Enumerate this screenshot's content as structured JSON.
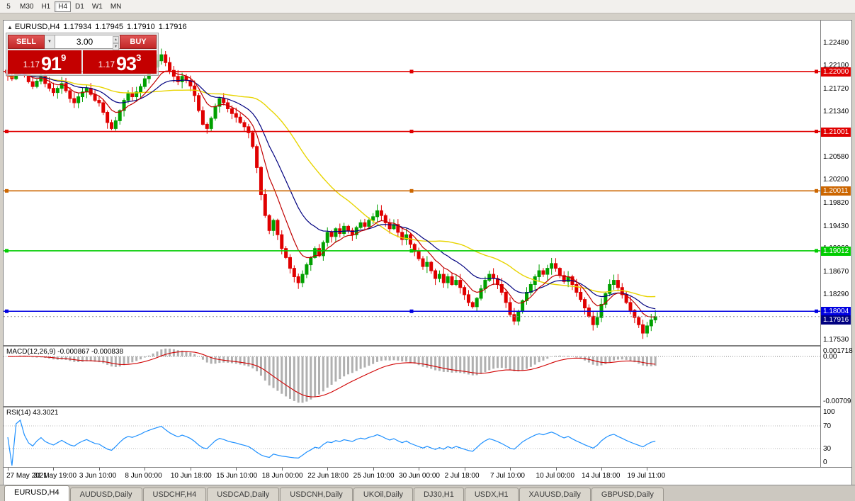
{
  "icons": {
    "collapse": "▲",
    "dropdown": "▼",
    "spin_up": "▲",
    "spin_down": "▼"
  },
  "toolbar": {
    "timeframes": [
      "5",
      "M30",
      "H1",
      "H4",
      "D1",
      "W1",
      "MN"
    ],
    "active": "H4"
  },
  "chart": {
    "header": {
      "collapse_icon": "▲",
      "symbol": "EURUSD,H4",
      "open": "1.17934",
      "high": "1.17945",
      "low": "1.17910",
      "close": "1.17916"
    },
    "trade_panel": {
      "sell_label": "SELL",
      "buy_label": "BUY",
      "lot_size": "3.00",
      "sell_price": {
        "prefix": "1.17",
        "big": "91",
        "sup": "9"
      },
      "buy_price": {
        "prefix": "1.17",
        "big": "93",
        "sup": "3"
      }
    },
    "levels": [
      {
        "price": 1.22,
        "label": "1.22000",
        "color": "#e00000"
      },
      {
        "price": 1.21001,
        "label": "1.21001",
        "color": "#e00000"
      },
      {
        "price": 1.20011,
        "label": "1.20011",
        "color": "#cc6600"
      },
      {
        "price": 1.19012,
        "label": "1.19012",
        "color": "#00cc00"
      },
      {
        "price": 1.18004,
        "label": "1.18004",
        "color": "#0000e0"
      }
    ],
    "current_price": {
      "value": 1.17916,
      "label": "1.17916",
      "color": "#000080"
    }
  },
  "chart_data": {
    "type": "candlestick",
    "title": "EURUSD,H4",
    "symbol": "EURUSD",
    "timeframe": "H4",
    "y_range": [
      1.1744,
      1.2285
    ],
    "y_ticks": [
      "1.22480",
      "1.22100",
      "1.21720",
      "1.21340",
      "1.20960",
      "1.20580",
      "1.20200",
      "1.19820",
      "1.19430",
      "1.19060",
      "1.18670",
      "1.18290",
      "1.17910",
      "1.17530"
    ],
    "x_labels": [
      "27 May 2021",
      "31 May 19:00",
      "3 Jun 10:00",
      "8 Jun 00:00",
      "10 Jun 18:00",
      "15 Jun 10:00",
      "18 Jun 00:00",
      "22 Jun 18:00",
      "25 Jun 10:00",
      "30 Jun 00:00",
      "2 Jul 18:00",
      "7 Jul 10:00",
      "10 Jul 00:00",
      "14 Jul 18:00",
      "19 Jul 11:00"
    ],
    "bars_per_label": 11,
    "open_first": 1.2198,
    "closes": [
      1.2193,
      1.2188,
      1.2202,
      1.2208,
      1.2196,
      1.2183,
      1.2175,
      1.2184,
      1.2192,
      1.218,
      1.2172,
      1.2165,
      1.2172,
      1.218,
      1.2168,
      1.2155,
      1.2148,
      1.2158,
      1.2166,
      1.2172,
      1.2162,
      1.2152,
      1.2148,
      1.2132,
      1.2115,
      1.2105,
      1.2118,
      1.2135,
      1.2152,
      1.2163,
      1.2158,
      1.2166,
      1.2175,
      1.2188,
      1.2198,
      1.2208,
      1.2218,
      1.2228,
      1.2215,
      1.2202,
      1.2192,
      1.2183,
      1.2192,
      1.2185,
      1.2176,
      1.216,
      1.2135,
      1.2112,
      1.2105,
      1.2122,
      1.2142,
      1.2155,
      1.2148,
      1.2138,
      1.213,
      1.2124,
      1.2115,
      1.2108,
      1.2098,
      1.2075,
      1.204,
      1.1995,
      1.196,
      1.1935,
      1.1952,
      1.1928,
      1.1905,
      1.189,
      1.1872,
      1.1858,
      1.1848,
      1.1862,
      1.1878,
      1.189,
      1.1905,
      1.1893,
      1.1915,
      1.1932,
      1.1925,
      1.1938,
      1.193,
      1.1942,
      1.1935,
      1.1928,
      1.194,
      1.1948,
      1.1942,
      1.1952,
      1.1958,
      1.1968,
      1.196,
      1.1948,
      1.1938,
      1.1945,
      1.1932,
      1.192,
      1.1928,
      1.1912,
      1.19,
      1.1888,
      1.1875,
      1.1882,
      1.1868,
      1.1855,
      1.1862,
      1.1848,
      1.1858,
      1.1845,
      1.1852,
      1.184,
      1.1828,
      1.1815,
      1.1808,
      1.1822,
      1.1838,
      1.1852,
      1.1862,
      1.1855,
      1.1845,
      1.1832,
      1.1815,
      1.1795,
      1.1784,
      1.18,
      1.1818,
      1.1832,
      1.1845,
      1.1858,
      1.1868,
      1.1862,
      1.1872,
      1.188,
      1.1872,
      1.186,
      1.185,
      1.1858,
      1.1845,
      1.1832,
      1.182,
      1.1806,
      1.1792,
      1.1778,
      1.179,
      1.1812,
      1.183,
      1.1845,
      1.1852,
      1.184,
      1.1828,
      1.1815,
      1.1802,
      1.179,
      1.1778,
      1.1764,
      1.1776,
      1.1786,
      1.17916
    ],
    "colors": {
      "up": "#00a000",
      "down": "#e00000",
      "ma_fast_red": "#c00000",
      "ma_mid_navy": "#00007f",
      "ma_slow_yellow": "#e8d400"
    },
    "moving_average_periods": {
      "red": 8,
      "navy": 18,
      "yellow": 34
    }
  },
  "macd": {
    "label": "MACD(12,26,9) -0.000867 -0.000838",
    "params": [
      12,
      26,
      9
    ],
    "main_value": "-0.000867",
    "signal_value": "-0.000838",
    "axis_labels": [
      "0.001718",
      "0.00",
      "-0.00709"
    ],
    "colors": {
      "histogram": "#b0b0b0",
      "signal": "#d00000"
    }
  },
  "rsi": {
    "label": "RSI(14) 43.3021",
    "period": 14,
    "value": "43.3021",
    "axis_labels": [
      "100",
      "70",
      "30",
      "0"
    ],
    "levels": [
      70,
      30
    ],
    "color": "#1e90ff"
  },
  "tabs": [
    "EURUSD,H4",
    "AUDUSD,Daily",
    "USDCHF,H4",
    "USDCAD,Daily",
    "USDCNH,Daily",
    "UKOil,Daily",
    "DJ30,H1",
    "USDX,H1",
    "XAUUSD,Daily",
    "GBPUSD,Daily"
  ],
  "active_tab": "EURUSD,H4"
}
